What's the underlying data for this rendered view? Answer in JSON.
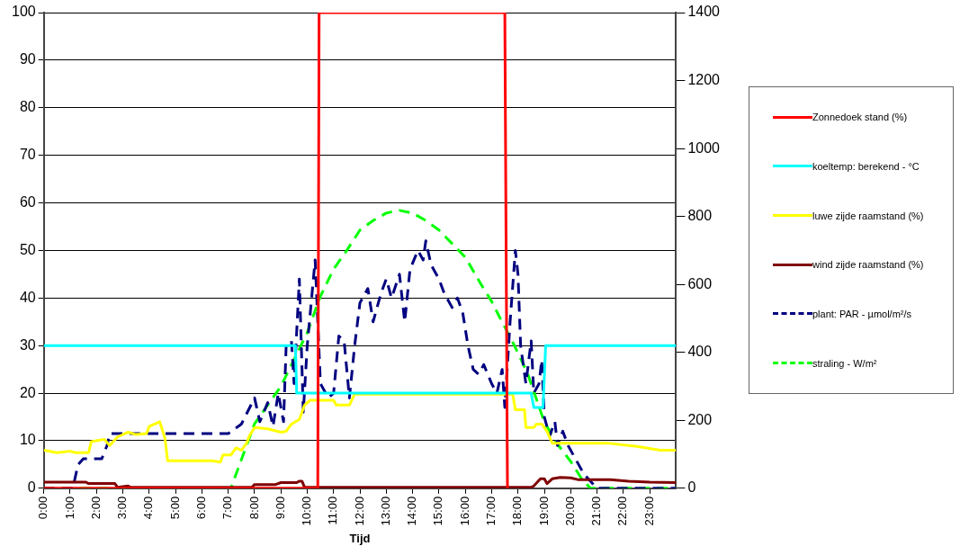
{
  "chart_data": {
    "type": "line",
    "xlabel": "Tijd",
    "xlim": [
      0,
      24
    ],
    "xticks": [
      {
        "value": 0,
        "label": "0:00"
      },
      {
        "value": 1,
        "label": "1:00"
      },
      {
        "value": 2,
        "label": "2:00"
      },
      {
        "value": 3,
        "label": "3:00"
      },
      {
        "value": 4,
        "label": "4:00"
      },
      {
        "value": 5,
        "label": "5:00"
      },
      {
        "value": 6,
        "label": "6:00"
      },
      {
        "value": 7,
        "label": "7:00"
      },
      {
        "value": 8,
        "label": "8:00"
      },
      {
        "value": 9,
        "label": "9:00"
      },
      {
        "value": 10,
        "label": "10:00"
      },
      {
        "value": 11,
        "label": "11:00"
      },
      {
        "value": 12,
        "label": "12:00"
      },
      {
        "value": 13,
        "label": "13:00"
      },
      {
        "value": 14,
        "label": "14:00"
      },
      {
        "value": 15,
        "label": "15:00"
      },
      {
        "value": 16,
        "label": "16:00"
      },
      {
        "value": 17,
        "label": "17:00"
      },
      {
        "value": 18,
        "label": "18:00"
      },
      {
        "value": 19,
        "label": "19:00"
      },
      {
        "value": 20,
        "label": "20:00"
      },
      {
        "value": 21,
        "label": "21:00"
      },
      {
        "value": 22,
        "label": "22:00"
      },
      {
        "value": 23,
        "label": "23:00"
      }
    ],
    "ylim": [
      0,
      100
    ],
    "yticks": [
      0,
      10,
      20,
      30,
      40,
      50,
      60,
      70,
      80,
      90,
      100
    ],
    "y2lim": [
      0,
      1400
    ],
    "y2ticks": [
      0,
      200,
      400,
      600,
      800,
      1000,
      1200,
      1400
    ],
    "grid": "y",
    "legend": "right",
    "marker": "none",
    "series": [
      {
        "name": "Zonnedoek stand (%)",
        "color": "#ff0000",
        "line_style": "solid",
        "x": [
          0,
          10.4,
          10.45,
          17.5,
          17.6
        ],
        "values": [
          0,
          0,
          100,
          100,
          0
        ]
      },
      {
        "name": "koeltemp: berekend - °C",
        "color": "#00ffff",
        "line_style": "solid",
        "x": [
          0,
          9.55,
          9.6,
          18.5,
          18.6,
          18.95,
          19.05,
          24
        ],
        "values": [
          30,
          30,
          20,
          20,
          17,
          17,
          30,
          30
        ]
      },
      {
        "name": "luwe zijde raamstand (%)",
        "color": "#ffff00",
        "line_style": "solid",
        "x": [
          0,
          0.5,
          1,
          1.2,
          1.7,
          1.8,
          2.3,
          2.5,
          2.8,
          3.2,
          3.5,
          3.9,
          4.0,
          4.4,
          4.6,
          4.7,
          6.4,
          6.7,
          6.8,
          7.1,
          7.3,
          7.5,
          7.7,
          7.8,
          8.0,
          8.5,
          9.0,
          9.2,
          9.4,
          9.7,
          9.9,
          10.1,
          11.0,
          11.1,
          11.6,
          11.8,
          17.8,
          17.9,
          18.25,
          18.3,
          18.6,
          18.7,
          18.9,
          19.1,
          19.3,
          21.4,
          22.5,
          23.4,
          24
        ],
        "values": [
          8,
          7.5,
          7.8,
          7.5,
          7.5,
          9.8,
          10.3,
          9,
          10.8,
          11.8,
          11.3,
          11.5,
          13,
          14,
          10.5,
          5.8,
          5.8,
          5.5,
          7,
          7,
          8.5,
          8,
          9.5,
          11,
          12.8,
          12.5,
          11.8,
          12,
          13.5,
          14.5,
          17.5,
          18.5,
          18.5,
          17.5,
          17.5,
          19.8,
          19.8,
          16.5,
          16.5,
          12.8,
          12.8,
          13.5,
          13.5,
          12,
          9.5,
          9.5,
          8.8,
          8,
          8
        ]
      },
      {
        "name": "wind zijde raamstand (%)",
        "color": "#800000",
        "line_style": "solid",
        "x": [
          0,
          1.6,
          1.7,
          2.7,
          2.8,
          3.2,
          3.3,
          7.9,
          8.0,
          8.8,
          9.0,
          9.6,
          9.7,
          9.8,
          9.9,
          18.5,
          18.6,
          18.85,
          19.0,
          19.1,
          19.3,
          19.6,
          20.0,
          20.3,
          21.5,
          22.2,
          23.0,
          24
        ],
        "values": [
          1.3,
          1.3,
          1,
          1,
          0.2,
          0.5,
          0.2,
          0.2,
          0.8,
          0.8,
          1.2,
          1.2,
          1.5,
          1.5,
          0.2,
          0.2,
          0.5,
          2,
          2,
          1,
          2,
          2.3,
          2.2,
          1.8,
          1.8,
          1.5,
          1.3,
          1.2
        ]
      },
      {
        "name": "plant: PAR - µmol/m²/s",
        "color": "#000080",
        "line_style": "dashed",
        "axis": "y2",
        "x": [
          0,
          1.1,
          1.3,
          1.5,
          2.2,
          2.4,
          2.5,
          7.0,
          7.5,
          8.0,
          8.2,
          8.5,
          8.7,
          8.9,
          9.1,
          9.2,
          9.4,
          9.5,
          9.7,
          9.85,
          10.0,
          10.3,
          10.5,
          10.8,
          11.0,
          11.2,
          11.4,
          11.6,
          11.8,
          12.0,
          12.3,
          12.5,
          12.8,
          13.0,
          13.2,
          13.5,
          13.7,
          13.9,
          14.2,
          14.4,
          14.5,
          14.7,
          15.0,
          15.2,
          15.5,
          15.7,
          15.9,
          16.1,
          16.3,
          16.5,
          16.7,
          17.0,
          17.2,
          17.4,
          17.5,
          17.7,
          17.9,
          18.0,
          18.1,
          18.3,
          18.5,
          18.6,
          18.8,
          18.9,
          19.0,
          19.2,
          19.4,
          19.5,
          19.7,
          19.9,
          20.2,
          20.5,
          21,
          24
        ],
        "values": [
          0,
          0,
          70,
          87,
          87,
          126,
          161,
          161,
          189,
          266,
          196,
          252,
          182,
          280,
          196,
          420,
          434,
          308,
          616,
          224,
          420,
          672,
          308,
          266,
          280,
          448,
          434,
          266,
          420,
          546,
          588,
          490,
          574,
          616,
          560,
          630,
          490,
          644,
          700,
          672,
          728,
          658,
          616,
          574,
          532,
          560,
          518,
          420,
          350,
          336,
          364,
          308,
          280,
          350,
          238,
          490,
          700,
          630,
          420,
          308,
          434,
          280,
          308,
          378,
          210,
          154,
          196,
          126,
          168,
          126,
          84,
          42,
          0,
          0
        ]
      },
      {
        "name": "straling - W/m²",
        "color": "#00ff00",
        "line_style": "dashed",
        "axis": "y2",
        "x": [
          0,
          7.1,
          8,
          9,
          10,
          10.5,
          11,
          11.5,
          12,
          12.5,
          13,
          13.5,
          14,
          14.5,
          15,
          15.5,
          16,
          16.6,
          17,
          17.3,
          17.8,
          18.35,
          19,
          19.5,
          20,
          20.4,
          20.75,
          24
        ],
        "values": [
          0,
          0,
          190,
          300,
          458,
          565,
          645,
          700,
          760,
          788,
          810,
          818,
          810,
          788,
          760,
          720,
          680,
          600,
          550,
          504,
          430,
          341,
          195,
          130,
          79,
          30,
          0,
          0
        ]
      }
    ]
  }
}
